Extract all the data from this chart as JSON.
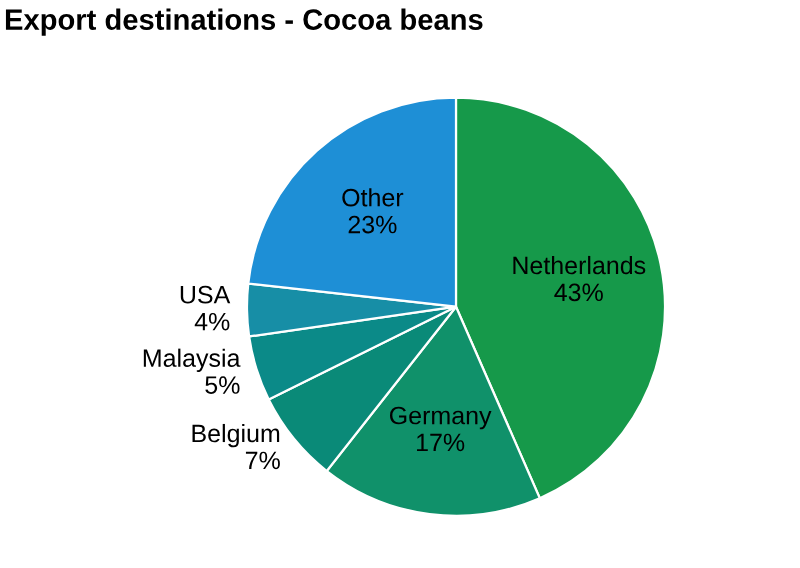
{
  "chart_data": {
    "type": "pie",
    "title": "Export destinations - Cocoa beans",
    "categories": [
      "Netherlands",
      "Germany",
      "Belgium",
      "Malaysia",
      "USA",
      "Other"
    ],
    "values": [
      43,
      17,
      7,
      5,
      4,
      23
    ],
    "colors": [
      "#16994a",
      "#10916a",
      "#0a8a78",
      "#0b8a88",
      "#178ea6",
      "#1e8fd6"
    ],
    "value_labels": [
      "43%",
      "17%",
      "7%",
      "5%",
      "4%",
      "23%"
    ]
  }
}
